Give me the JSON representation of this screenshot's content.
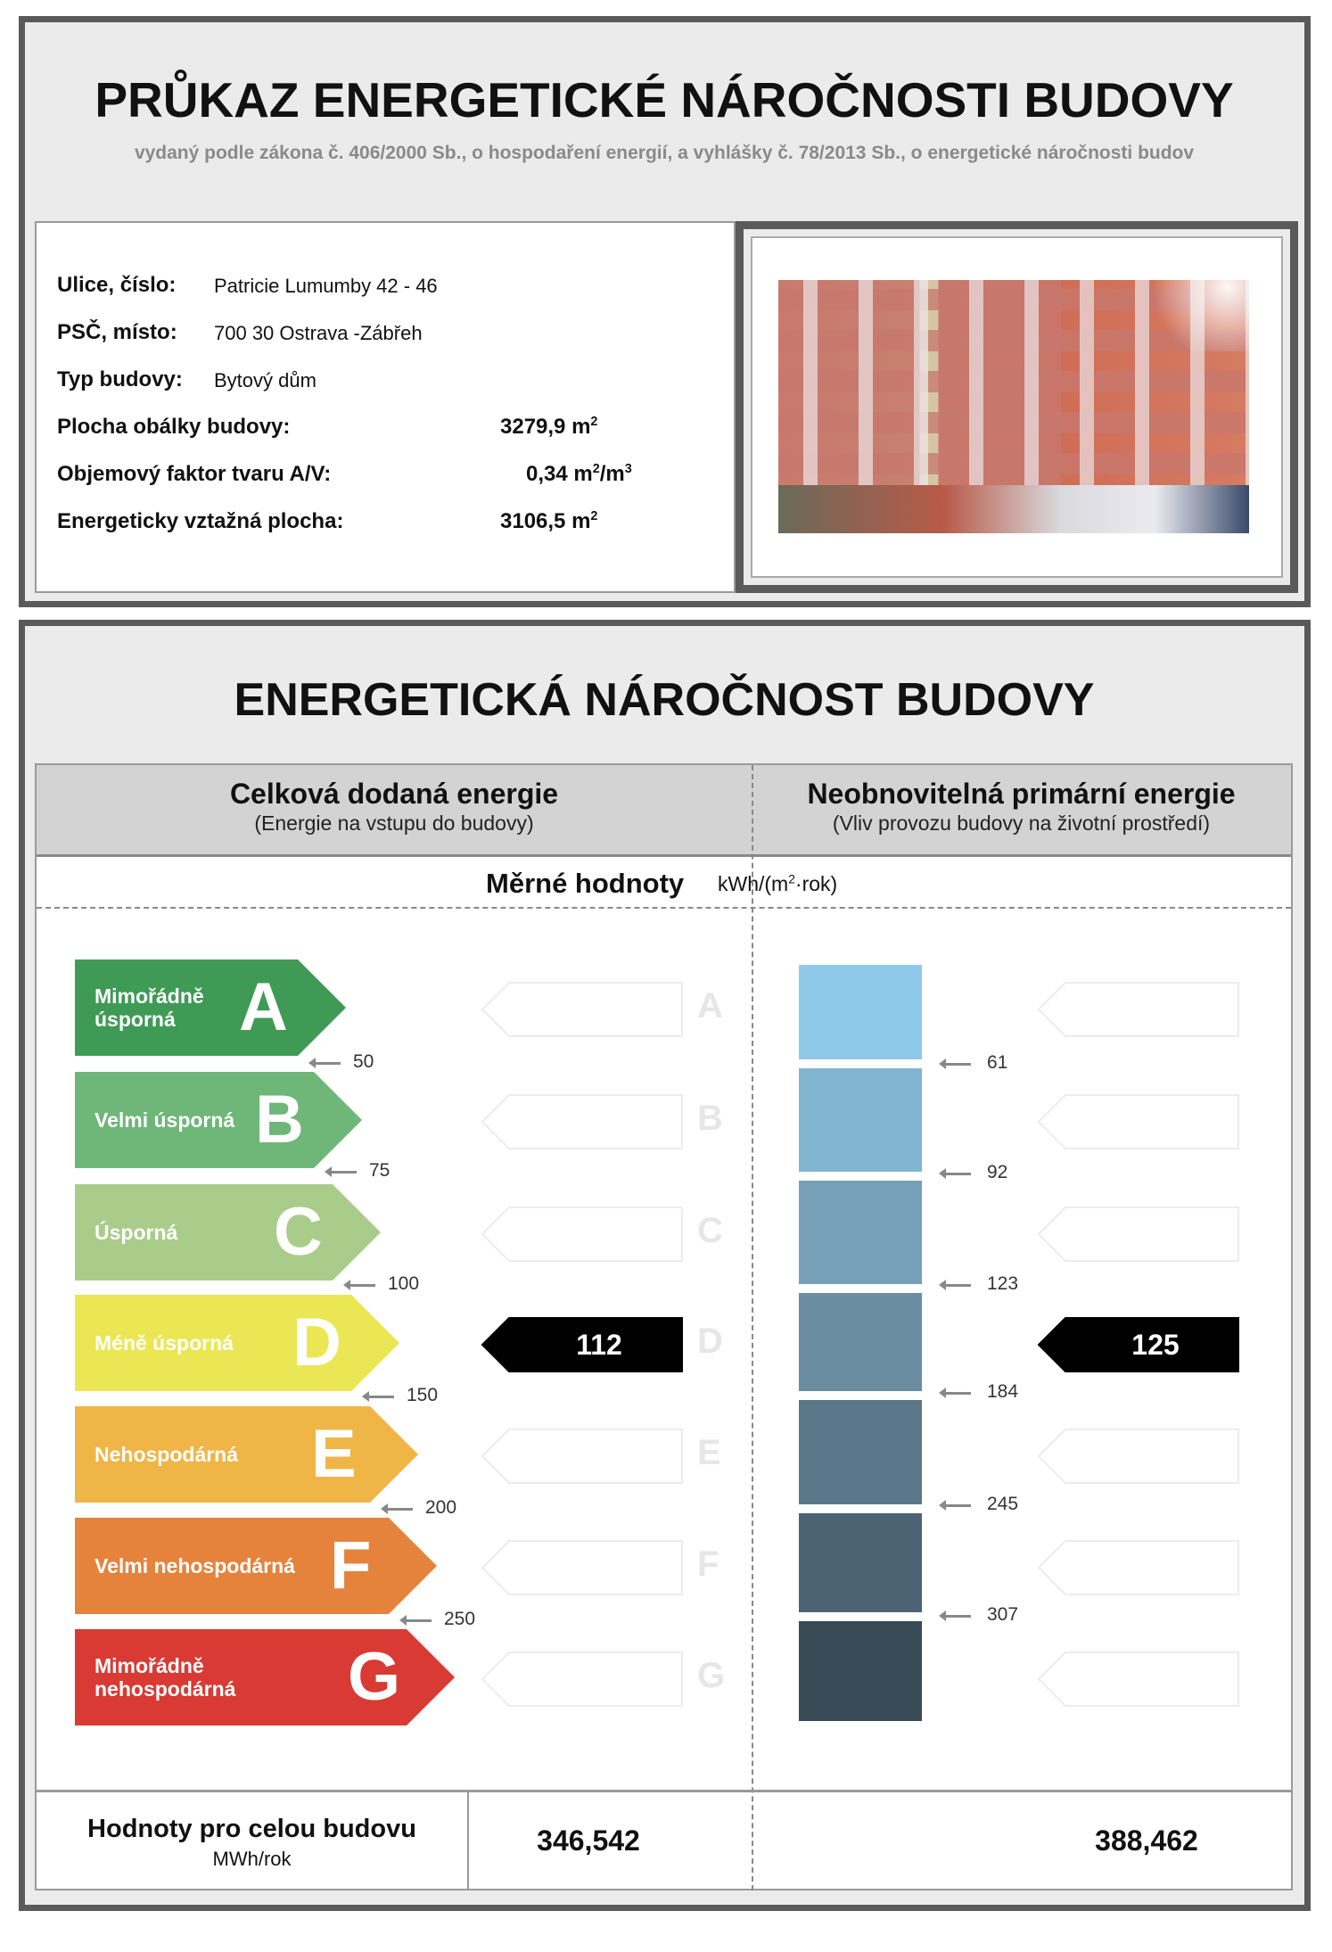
{
  "header": {
    "title": "PRŮKAZ ENERGETICKÉ NÁROČNOSTI BUDOVY",
    "subtitle": "vydaný podle zákona č. 406/2000 Sb., o hospodaření energií, a vyhlášky č. 78/2013 Sb., o energetické náročnosti budov"
  },
  "info": {
    "street_label": "Ulice, číslo:",
    "street_value": "Patricie Lumumby 42 - 46",
    "city_label": "PSČ, místo:",
    "city_value": "700 30  Ostrava -Zábřeh",
    "type_label": "Typ budovy:",
    "type_value": "Bytový dům",
    "envelope_label": "Plocha obálky budovy:",
    "envelope_value": "3279,9 m",
    "envelope_sup": "2",
    "shape_label": "Objemový faktor tvaru A/V:",
    "shape_value": "0,34 m",
    "shape_sup1": "2",
    "shape_mid": "/m",
    "shape_sup2": "3",
    "area_label": "Energeticky vztažná plocha:",
    "area_value": "3106,5 m",
    "area_sup": "2"
  },
  "section": {
    "title": "ENERGETICKÁ NÁROČNOST BUDOVY",
    "left_heading": "Celková dodaná energie",
    "left_sub": "(Energie na vstupu do budovy)",
    "right_heading": "Neobnovitelná primární energie",
    "right_sub": "(Vliv provozu budovy na životní prostředí)",
    "specific_label": "Měrné hodnoty",
    "unit_pre": "kWh/(m",
    "unit_sup": "2",
    "unit_post": "·rok)"
  },
  "classes": [
    {
      "letter": "A",
      "label": "Mimořádně úsporná",
      "color": "#3f9a56"
    },
    {
      "letter": "B",
      "label": "Velmi úsporná",
      "color": "#6fb679"
    },
    {
      "letter": "C",
      "label": "Úsporná",
      "color": "#a9cc8b"
    },
    {
      "letter": "D",
      "label": "Méně úsporná",
      "color": "#ebe654"
    },
    {
      "letter": "E",
      "label": "Nehospodárná",
      "color": "#efb546"
    },
    {
      "letter": "F",
      "label": "Velmi nehospodárná",
      "color": "#e5833c"
    },
    {
      "letter": "G",
      "label": "Mimořádně nehospodárná",
      "color": "#d93a33"
    }
  ],
  "left_thresholds": [
    "50",
    "75",
    "100",
    "150",
    "200",
    "250"
  ],
  "right_thresholds": [
    "61",
    "92",
    "123",
    "184",
    "245",
    "307"
  ],
  "right_colors": [
    "#8fc9e9",
    "#82b5d2",
    "#76a0b8",
    "#6a8da2",
    "#5b788b",
    "#4b6373",
    "#384b57"
  ],
  "result": {
    "left_value": "112",
    "left_class": "D",
    "right_value": "125",
    "right_class": "D"
  },
  "totals": {
    "label": "Hodnoty pro celou budovu",
    "unit": "MWh/rok",
    "left": "346,542",
    "right": "388,462"
  }
}
